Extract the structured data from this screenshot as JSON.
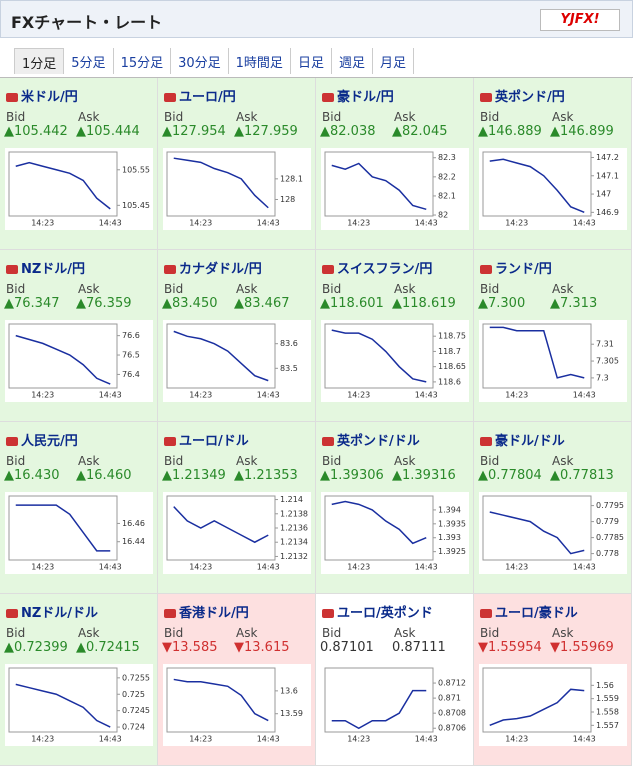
{
  "header": {
    "title": "FXチャート・レート",
    "logo": "YJFX!"
  },
  "tabs": [
    "1分足",
    "5分足",
    "15分足",
    "30分足",
    "1時間足",
    "日足",
    "週足",
    "月足"
  ],
  "panels": [
    {
      "name": "米ドル/円",
      "bid_label": "Bid",
      "ask_label": "Ask",
      "arrow": "▲",
      "bid": "105.442",
      "ask": "105.444",
      "chart": {
        "type": "line",
        "categories": [
          null,
          null,
          "14:23",
          null,
          null,
          null,
          null,
          "14:43"
        ],
        "values": [
          105.56,
          105.57,
          105.56,
          105.55,
          105.54,
          105.52,
          105.47,
          105.44
        ],
        "ylim": [
          105.42,
          105.6
        ],
        "yticks": [
          105.45,
          105.55
        ]
      }
    },
    {
      "name": "ユーロ/円",
      "bid_label": "Bid",
      "ask_label": "Ask",
      "arrow": "▲",
      "bid": "127.954",
      "ask": "127.959",
      "chart": {
        "type": "line",
        "categories": [
          null,
          null,
          "14:23",
          null,
          null,
          null,
          null,
          "14:43"
        ],
        "values": [
          128.2,
          128.19,
          128.18,
          128.15,
          128.13,
          128.1,
          128.02,
          127.96
        ],
        "ylim": [
          127.92,
          128.23
        ],
        "yticks": [
          128,
          128.1
        ]
      }
    },
    {
      "name": "豪ドル/円",
      "bid_label": "Bid",
      "ask_label": "Ask",
      "arrow": "▲",
      "bid": "82.038",
      "ask": "82.045",
      "chart": {
        "type": "line",
        "categories": [
          null,
          null,
          "14:23",
          null,
          null,
          null,
          null,
          "14:43"
        ],
        "values": [
          82.26,
          82.24,
          82.27,
          82.2,
          82.18,
          82.13,
          82.05,
          82.03
        ],
        "ylim": [
          81.995,
          82.33
        ],
        "yticks": [
          82,
          82.1,
          82.2,
          82.3
        ]
      }
    },
    {
      "name": "英ポンド/円",
      "bid_label": "Bid",
      "ask_label": "Ask",
      "arrow": "▲",
      "bid": "146.889",
      "ask": "146.899",
      "chart": {
        "type": "line",
        "categories": [
          null,
          null,
          "14:23",
          null,
          null,
          null,
          null,
          "14:43"
        ],
        "values": [
          147.18,
          147.19,
          147.17,
          147.15,
          147.1,
          147.02,
          146.93,
          146.9
        ],
        "ylim": [
          146.88,
          147.23
        ],
        "yticks": [
          146.9,
          147,
          147.1,
          147.2
        ]
      }
    },
    {
      "name": "NZドル/円",
      "bid_label": "Bid",
      "ask_label": "Ask",
      "arrow": "▲",
      "bid": "76.347",
      "ask": "76.359",
      "chart": {
        "type": "line",
        "categories": [
          null,
          null,
          "14:23",
          null,
          null,
          null,
          null,
          "14:43"
        ],
        "values": [
          76.6,
          76.58,
          76.56,
          76.53,
          76.5,
          76.45,
          76.38,
          76.35
        ],
        "ylim": [
          76.33,
          76.66
        ],
        "yticks": [
          76.4,
          76.5,
          76.6
        ]
      }
    },
    {
      "name": "カナダドル/円",
      "bid_label": "Bid",
      "ask_label": "Ask",
      "arrow": "▲",
      "bid": "83.450",
      "ask": "83.467",
      "chart": {
        "type": "line",
        "categories": [
          null,
          null,
          "14:23",
          null,
          null,
          null,
          null,
          "14:43"
        ],
        "values": [
          83.65,
          83.63,
          83.62,
          83.6,
          83.57,
          83.52,
          83.47,
          83.45
        ],
        "ylim": [
          83.42,
          83.68
        ],
        "yticks": [
          83.5,
          83.6
        ]
      }
    },
    {
      "name": "スイスフラン/円",
      "bid_label": "Bid",
      "ask_label": "Ask",
      "arrow": "▲",
      "bid": "118.601",
      "ask": "118.619",
      "chart": {
        "type": "line",
        "categories": [
          null,
          null,
          "14:23",
          null,
          null,
          null,
          null,
          "14:43"
        ],
        "values": [
          118.77,
          118.76,
          118.76,
          118.74,
          118.7,
          118.65,
          118.61,
          118.6
        ],
        "ylim": [
          118.58,
          118.79
        ],
        "yticks": [
          118.6,
          118.65,
          118.7,
          118.75
        ]
      }
    },
    {
      "name": "ランド/円",
      "bid_label": "Bid",
      "ask_label": "Ask",
      "arrow": "▲",
      "bid": "7.300",
      "ask": "7.313",
      "chart": {
        "type": "line",
        "categories": [
          null,
          null,
          "14:23",
          null,
          null,
          null,
          null,
          "14:43"
        ],
        "values": [
          7.315,
          7.315,
          7.314,
          7.314,
          7.314,
          7.3,
          7.301,
          7.3
        ],
        "ylim": [
          7.297,
          7.316
        ],
        "yticks": [
          7.3,
          7.305,
          7.31
        ]
      }
    },
    {
      "name": "人民元/円",
      "bid_label": "Bid",
      "ask_label": "Ask",
      "arrow": "▲",
      "bid": "16.430",
      "ask": "16.460",
      "chart": {
        "type": "line",
        "categories": [
          null,
          null,
          "14:23",
          null,
          null,
          null,
          null,
          "14:43"
        ],
        "values": [
          16.48,
          16.48,
          16.48,
          16.48,
          16.47,
          16.45,
          16.43,
          16.43
        ],
        "ylim": [
          16.42,
          16.49
        ],
        "yticks": [
          16.44,
          16.46
        ]
      }
    },
    {
      "name": "ユーロ/ドル",
      "bid_label": "Bid",
      "ask_label": "Ask",
      "arrow": "▲",
      "bid": "1.21349",
      "ask": "1.21353",
      "chart": {
        "type": "line",
        "categories": [
          null,
          null,
          "14:23",
          null,
          null,
          null,
          null,
          "14:43"
        ],
        "values": [
          1.2139,
          1.2137,
          1.2136,
          1.2137,
          1.2136,
          1.2135,
          1.2134,
          1.2135
        ],
        "ylim": [
          1.21315,
          1.21405
        ],
        "yticks": [
          1.2132,
          1.2134,
          1.2136,
          1.2138,
          1.214
        ]
      }
    },
    {
      "name": "英ポンド/ドル",
      "bid_label": "Bid",
      "ask_label": "Ask",
      "arrow": "▲",
      "bid": "1.39306",
      "ask": "1.39316",
      "chart": {
        "type": "line",
        "categories": [
          null,
          null,
          "14:23",
          null,
          null,
          null,
          null,
          "14:43"
        ],
        "values": [
          1.3942,
          1.3943,
          1.3942,
          1.394,
          1.3936,
          1.3933,
          1.3928,
          1.393
        ],
        "ylim": [
          1.3922,
          1.3945
        ],
        "yticks": [
          1.3925,
          1.393,
          1.3935,
          1.394
        ]
      }
    },
    {
      "name": "豪ドル/ドル",
      "bid_label": "Bid",
      "ask_label": "Ask",
      "arrow": "▲",
      "bid": "0.77804",
      "ask": "0.77813",
      "chart": {
        "type": "line",
        "categories": [
          null,
          null,
          "14:23",
          null,
          null,
          null,
          null,
          "14:43"
        ],
        "values": [
          0.7793,
          0.7792,
          0.7791,
          0.779,
          0.7787,
          0.7785,
          0.778,
          0.7781
        ],
        "ylim": [
          0.7778,
          0.7798
        ],
        "yticks": [
          0.778,
          0.7785,
          0.779,
          0.7795
        ]
      }
    },
    {
      "name": "NZドル/ドル",
      "bid_label": "Bid",
      "ask_label": "Ask",
      "arrow": "▲",
      "bid": "0.72399",
      "ask": "0.72415",
      "chart": {
        "type": "line",
        "categories": [
          null,
          null,
          "14:23",
          null,
          null,
          null,
          null,
          "14:43"
        ],
        "values": [
          0.7253,
          0.7252,
          0.7251,
          0.725,
          0.7248,
          0.7246,
          0.7242,
          0.724
        ],
        "ylim": [
          0.72385,
          0.7258
        ],
        "yticks": [
          0.724,
          0.7245,
          0.725,
          0.7255
        ]
      }
    },
    {
      "name": "香港ドル/円",
      "bid_label": "Bid",
      "ask_label": "Ask",
      "arrow": "▼",
      "bid": "13.585",
      "ask": "13.615",
      "chart": {
        "type": "line",
        "categories": [
          null,
          null,
          "14:23",
          null,
          null,
          null,
          null,
          "14:43"
        ],
        "values": [
          13.605,
          13.604,
          13.604,
          13.603,
          13.602,
          13.598,
          13.59,
          13.587
        ],
        "ylim": [
          13.582,
          13.61
        ],
        "yticks": [
          13.59,
          13.6
        ]
      }
    },
    {
      "name": "ユーロ/英ポンド",
      "bid_label": "Bid",
      "ask_label": "Ask",
      "bid": "0.87101",
      "ask": "0.87111",
      "chart": {
        "type": "line",
        "categories": [
          null,
          null,
          "14:23",
          null,
          null,
          null,
          null,
          "14:43"
        ],
        "values": [
          0.8707,
          0.8707,
          0.8706,
          0.8707,
          0.8707,
          0.8708,
          0.8711,
          0.8711
        ],
        "ylim": [
          0.87055,
          0.8714
        ],
        "yticks": [
          0.8706,
          0.8708,
          0.871,
          0.8712
        ]
      }
    },
    {
      "name": "ユーロ/豪ドル",
      "bid_label": "Bid",
      "ask_label": "Ask",
      "arrow": "▼",
      "bid": "1.55954",
      "ask": "1.55969",
      "chart": {
        "type": "line",
        "categories": [
          null,
          null,
          "14:23",
          null,
          null,
          null,
          null,
          "14:43"
        ],
        "values": [
          1.557,
          1.5574,
          1.5575,
          1.5577,
          1.5582,
          1.5587,
          1.5597,
          1.5596
        ],
        "ylim": [
          1.5565,
          1.5613
        ],
        "yticks": [
          1.557,
          1.558,
          1.559,
          1.56
        ]
      }
    }
  ]
}
